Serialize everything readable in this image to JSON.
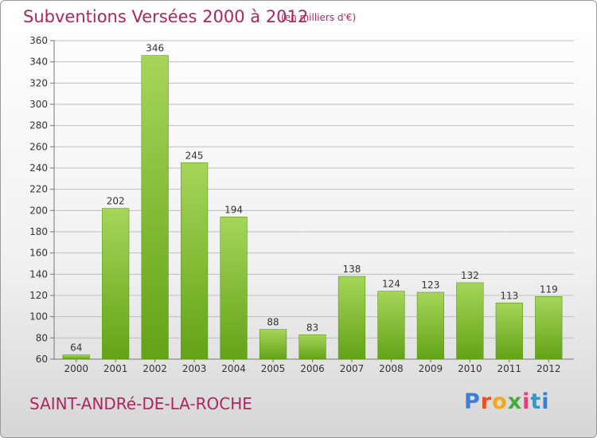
{
  "title": "Subventions Versées 2000 à 2012",
  "subtitle": "(en milliers d'€)",
  "commune": "SAINT-ANDRé-DE-LA-ROCHE",
  "logo": [
    "P",
    "r",
    "o",
    "x",
    "i",
    "t",
    "i"
  ],
  "colors": {
    "bar_light": "#a6d55a",
    "bar_dark": "#63a317",
    "title": "#b0245f",
    "grid": "#bfbfbf"
  },
  "chart_data": {
    "type": "bar",
    "categories": [
      "2000",
      "2001",
      "2002",
      "2003",
      "2004",
      "2005",
      "2006",
      "2007",
      "2008",
      "2009",
      "2010",
      "2011",
      "2012"
    ],
    "values": [
      64,
      202,
      346,
      245,
      194,
      88,
      83,
      138,
      124,
      123,
      132,
      113,
      119
    ],
    "ylim": [
      60,
      360
    ],
    "yticks": [
      "60",
      "80",
      "100",
      "120",
      "140",
      "160",
      "180",
      "200",
      "220",
      "240",
      "260",
      "280",
      "300",
      "320",
      "340",
      "360"
    ],
    "grid": true
  }
}
